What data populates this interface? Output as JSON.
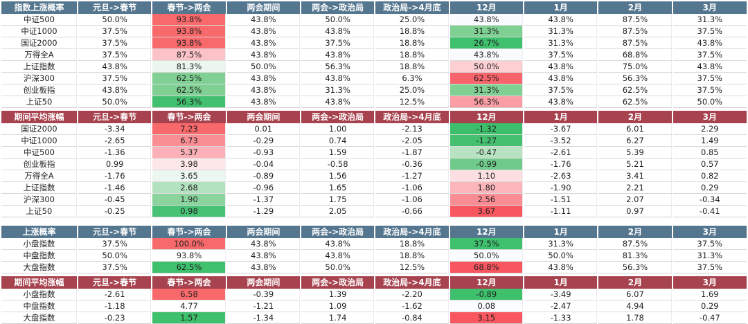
{
  "page": {
    "background": "#ffffff",
    "body_text_color": "#1f1f1f",
    "grid_line_color": "#d9d9d9",
    "probability_header_bg": "#54768F",
    "gain_header_bg": "#A7434F",
    "heat_red_max": "#F8696B",
    "heat_green_max": "#3FC06D"
  },
  "chart_data": [
    {
      "type": "table",
      "title": "指数上涨概率",
      "header_bg": "#54768F",
      "columns": [
        "元旦->春节",
        "春节->两会",
        "两会期间",
        "两会->政治局",
        "政治局->4月底",
        "12月",
        "1月",
        "2月",
        "3月"
      ],
      "rows": [
        {
          "label": "中证500",
          "cells": [
            {
              "v": "50.0%"
            },
            {
              "v": "93.8%",
              "bg": "#F8696B"
            },
            {
              "v": "43.8%"
            },
            {
              "v": "50.0%"
            },
            {
              "v": "25.0%"
            },
            {
              "v": "43.8%",
              "bg": "#FAFBFE"
            },
            {
              "v": "43.8%"
            },
            {
              "v": "87.5%"
            },
            {
              "v": "31.3%"
            }
          ]
        },
        {
          "label": "中证1000",
          "cells": [
            {
              "v": "37.5%"
            },
            {
              "v": "93.8%",
              "bg": "#F8696B"
            },
            {
              "v": "43.8%"
            },
            {
              "v": "43.8%"
            },
            {
              "v": "18.8%"
            },
            {
              "v": "31.3%",
              "bg": "#7FD092"
            },
            {
              "v": "31.3%"
            },
            {
              "v": "87.5%"
            },
            {
              "v": "37.5%"
            }
          ]
        },
        {
          "label": "国证2000",
          "cells": [
            {
              "v": "37.5%"
            },
            {
              "v": "93.8%",
              "bg": "#F8696B"
            },
            {
              "v": "43.8%"
            },
            {
              "v": "37.5%"
            },
            {
              "v": "18.8%"
            },
            {
              "v": "26.7%",
              "bg": "#3FC06D"
            },
            {
              "v": "31.3%"
            },
            {
              "v": "87.5%"
            },
            {
              "v": "43.8%"
            }
          ]
        },
        {
          "label": "万得全A",
          "cells": [
            {
              "v": "37.5%"
            },
            {
              "v": "87.5%",
              "bg": "#FBC3C8"
            },
            {
              "v": "43.8%"
            },
            {
              "v": "43.8%"
            },
            {
              "v": "18.8%"
            },
            {
              "v": "43.8%",
              "bg": "#FAFBFE"
            },
            {
              "v": "37.5%"
            },
            {
              "v": "68.8%"
            },
            {
              "v": "37.5%"
            }
          ]
        },
        {
          "label": "上证指数",
          "cells": [
            {
              "v": "43.8%"
            },
            {
              "v": "81.3%",
              "bg": "#EBF6EF"
            },
            {
              "v": "50.0%"
            },
            {
              "v": "56.3%"
            },
            {
              "v": "18.8%"
            },
            {
              "v": "50.0%",
              "bg": "#FCCFD3"
            },
            {
              "v": "43.8%"
            },
            {
              "v": "75.0%"
            },
            {
              "v": "43.8%"
            }
          ]
        },
        {
          "label": "沪深300",
          "cells": [
            {
              "v": "37.5%"
            },
            {
              "v": "62.5%",
              "bg": "#7FD092"
            },
            {
              "v": "43.8%"
            },
            {
              "v": "43.8%"
            },
            {
              "v": "6.3%"
            },
            {
              "v": "62.5%",
              "bg": "#F8646C"
            },
            {
              "v": "43.8%"
            },
            {
              "v": "56.3%"
            },
            {
              "v": "37.5%"
            }
          ]
        },
        {
          "label": "创业板指",
          "cells": [
            {
              "v": "43.8%"
            },
            {
              "v": "62.5%",
              "bg": "#7FD092"
            },
            {
              "v": "43.8%"
            },
            {
              "v": "31.3%"
            },
            {
              "v": "25.0%"
            },
            {
              "v": "31.3%",
              "bg": "#7FD092"
            },
            {
              "v": "37.5%"
            },
            {
              "v": "62.5%"
            },
            {
              "v": "37.5%"
            }
          ]
        },
        {
          "label": "上证50",
          "cells": [
            {
              "v": "50.0%"
            },
            {
              "v": "56.3%",
              "bg": "#41C06F"
            },
            {
              "v": "43.8%"
            },
            {
              "v": "43.8%"
            },
            {
              "v": "12.5%"
            },
            {
              "v": "56.3%",
              "bg": "#FB9DA4"
            },
            {
              "v": "43.8%"
            },
            {
              "v": "62.5%"
            },
            {
              "v": "50.0%"
            }
          ]
        }
      ]
    },
    {
      "type": "table",
      "title": "期间平均涨幅",
      "header_bg": "#A7434F",
      "columns": [
        "元旦->春节",
        "春节->两会",
        "两会期间",
        "两会->政治局",
        "政治局->4月底",
        "12月",
        "1月",
        "2月",
        "3月"
      ],
      "rows": [
        {
          "label": "国证2000",
          "cells": [
            {
              "v": "-3.34"
            },
            {
              "v": "7.23",
              "bg": "#F8696B"
            },
            {
              "v": "0.01"
            },
            {
              "v": "1.00"
            },
            {
              "v": "-2.13"
            },
            {
              "v": "-1.32",
              "bg": "#3DBE6B"
            },
            {
              "v": "-3.67"
            },
            {
              "v": "6.01"
            },
            {
              "v": "2.29"
            }
          ]
        },
        {
          "label": "中证1000",
          "cells": [
            {
              "v": "-2.65"
            },
            {
              "v": "6.73",
              "bg": "#FA8E95"
            },
            {
              "v": "-0.29"
            },
            {
              "v": "0.74"
            },
            {
              "v": "-2.05"
            },
            {
              "v": "-1.27",
              "bg": "#44C06F"
            },
            {
              "v": "-3.52"
            },
            {
              "v": "6.27"
            },
            {
              "v": "1.49"
            }
          ]
        },
        {
          "label": "中证500",
          "cells": [
            {
              "v": "-1.36"
            },
            {
              "v": "5.37",
              "bg": "#FBB1B7"
            },
            {
              "v": "-0.93"
            },
            {
              "v": "1.59"
            },
            {
              "v": "-1.87"
            },
            {
              "v": "-0.47",
              "bg": "#B7E3C3"
            },
            {
              "v": "-2.61"
            },
            {
              "v": "5.39"
            },
            {
              "v": "0.85"
            }
          ]
        },
        {
          "label": "创业板指",
          "cells": [
            {
              "v": "0.99"
            },
            {
              "v": "3.98",
              "bg": "#FDE7E9"
            },
            {
              "v": "-0.04"
            },
            {
              "v": "-0.58"
            },
            {
              "v": "-0.36"
            },
            {
              "v": "-0.99",
              "bg": "#6FCB8A"
            },
            {
              "v": "-1.76"
            },
            {
              "v": "5.21"
            },
            {
              "v": "0.57"
            }
          ]
        },
        {
          "label": "万得全A",
          "cells": [
            {
              "v": "-1.76"
            },
            {
              "v": "3.65",
              "bg": "#EDF7F1"
            },
            {
              "v": "-0.89"
            },
            {
              "v": "1.56"
            },
            {
              "v": "-1.27"
            },
            {
              "v": "1.10",
              "bg": "#FCDFE2"
            },
            {
              "v": "-2.63"
            },
            {
              "v": "3.41"
            },
            {
              "v": "0.82"
            }
          ]
        },
        {
          "label": "上证指数",
          "cells": [
            {
              "v": "-1.46"
            },
            {
              "v": "2.68",
              "bg": "#B3E2C1"
            },
            {
              "v": "-0.96"
            },
            {
              "v": "1.65"
            },
            {
              "v": "-1.06"
            },
            {
              "v": "1.80",
              "bg": "#FBB6BC"
            },
            {
              "v": "-1.90"
            },
            {
              "v": "2.21"
            },
            {
              "v": "0.29"
            }
          ]
        },
        {
          "label": "沪深300",
          "cells": [
            {
              "v": "-0.45"
            },
            {
              "v": "1.90",
              "bg": "#8BD49E"
            },
            {
              "v": "-1.37"
            },
            {
              "v": "1.75"
            },
            {
              "v": "-1.06"
            },
            {
              "v": "2.56",
              "bg": "#FA8D94"
            },
            {
              "v": "-1.51"
            },
            {
              "v": "2.07"
            },
            {
              "v": "-0.34"
            }
          ]
        },
        {
          "label": "上证50",
          "cells": [
            {
              "v": "-0.25"
            },
            {
              "v": "0.98",
              "bg": "#48C275"
            },
            {
              "v": "-1.29"
            },
            {
              "v": "2.05"
            },
            {
              "v": "-0.66"
            },
            {
              "v": "3.67",
              "bg": "#F8575F"
            },
            {
              "v": "-1.11"
            },
            {
              "v": "0.97"
            },
            {
              "v": "-0.41"
            }
          ]
        }
      ]
    },
    {
      "type": "table",
      "title": "上涨概率",
      "header_bg": "#54768F",
      "columns": [
        "元旦->春节",
        "春节->两会",
        "两会期间",
        "两会->政治局",
        "政治局->4月底",
        "12月",
        "1月",
        "2月",
        "3月"
      ],
      "rows": [
        {
          "label": "小盘指数",
          "cells": [
            {
              "v": "37.5%"
            },
            {
              "v": "100.0%",
              "bg": "#F8696B"
            },
            {
              "v": "43.8%"
            },
            {
              "v": "43.8%"
            },
            {
              "v": "18.8%"
            },
            {
              "v": "37.5%",
              "bg": "#3EC06D"
            },
            {
              "v": "31.3%"
            },
            {
              "v": "87.5%"
            },
            {
              "v": "37.5%"
            }
          ]
        },
        {
          "label": "中盘指数",
          "cells": [
            {
              "v": "50.0%"
            },
            {
              "v": "93.8%"
            },
            {
              "v": "43.8%"
            },
            {
              "v": "43.8%"
            },
            {
              "v": "18.8%"
            },
            {
              "v": "50.0%",
              "bg": "#FBFCFE"
            },
            {
              "v": "50.0%"
            },
            {
              "v": "81.3%"
            },
            {
              "v": "31.3%"
            }
          ]
        },
        {
          "label": "大盘指数",
          "cells": [
            {
              "v": "37.5%"
            },
            {
              "v": "62.5%",
              "bg": "#3FC06D"
            },
            {
              "v": "43.8%"
            },
            {
              "v": "50.0%"
            },
            {
              "v": "12.5%"
            },
            {
              "v": "68.8%",
              "bg": "#F8575F"
            },
            {
              "v": "43.8%"
            },
            {
              "v": "56.3%"
            },
            {
              "v": "37.5%"
            }
          ]
        }
      ]
    },
    {
      "type": "table",
      "title": "期间平均涨幅",
      "header_bg": "#A7434F",
      "columns": [
        "元旦->春节",
        "春节->两会",
        "两会期间",
        "两会->政治局",
        "政治局->4月底",
        "12月",
        "1月",
        "2月",
        "3月"
      ],
      "rows": [
        {
          "label": "小盘指数",
          "cells": [
            {
              "v": "-2.61"
            },
            {
              "v": "6.58",
              "bg": "#F8696B"
            },
            {
              "v": "-0.39"
            },
            {
              "v": "1.39"
            },
            {
              "v": "-2.20"
            },
            {
              "v": "-0.89",
              "bg": "#3EC06D"
            },
            {
              "v": "-3.49"
            },
            {
              "v": "6.07"
            },
            {
              "v": "1.69"
            }
          ]
        },
        {
          "label": "中盘指数",
          "cells": [
            {
              "v": "-1.18"
            },
            {
              "v": "4.77"
            },
            {
              "v": "-1.21"
            },
            {
              "v": "1.09"
            },
            {
              "v": "-1.62"
            },
            {
              "v": "0.08",
              "bg": "#FBFCFE"
            },
            {
              "v": "-2.47"
            },
            {
              "v": "4.94"
            },
            {
              "v": "0.29"
            }
          ]
        },
        {
          "label": "大盘指数",
          "cells": [
            {
              "v": "-0.23"
            },
            {
              "v": "1.57",
              "bg": "#3FC06D"
            },
            {
              "v": "-1.34"
            },
            {
              "v": "1.74"
            },
            {
              "v": "-0.84"
            },
            {
              "v": "3.15",
              "bg": "#F8575F"
            },
            {
              "v": "-1.33"
            },
            {
              "v": "1.78"
            },
            {
              "v": "-0.47"
            }
          ]
        }
      ]
    }
  ]
}
